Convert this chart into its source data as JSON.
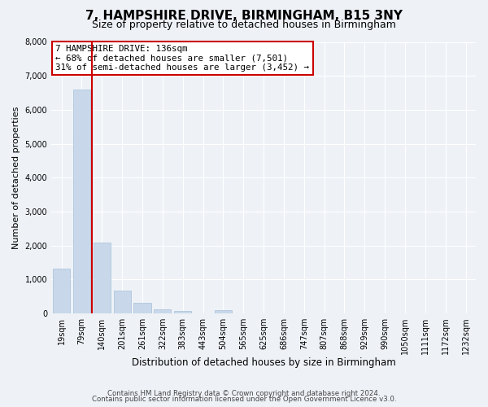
{
  "title": "7, HAMPSHIRE DRIVE, BIRMINGHAM, B15 3NY",
  "subtitle": "Size of property relative to detached houses in Birmingham",
  "xlabel": "Distribution of detached houses by size in Birmingham",
  "ylabel": "Number of detached properties",
  "bar_labels": [
    "19sqm",
    "79sqm",
    "140sqm",
    "201sqm",
    "261sqm",
    "322sqm",
    "383sqm",
    "443sqm",
    "504sqm",
    "565sqm",
    "625sqm",
    "686sqm",
    "747sqm",
    "807sqm",
    "868sqm",
    "929sqm",
    "990sqm",
    "1050sqm",
    "1111sqm",
    "1172sqm",
    "1232sqm"
  ],
  "bar_values": [
    1320,
    6600,
    2080,
    660,
    300,
    130,
    75,
    0,
    95,
    0,
    0,
    0,
    0,
    0,
    0,
    0,
    0,
    0,
    0,
    0,
    0
  ],
  "bar_color": "#c8d8ea",
  "bar_edge_color": "#a8c0d8",
  "vline_color": "#cc0000",
  "vline_x": 1.5,
  "ylim": [
    0,
    8000
  ],
  "yticks": [
    0,
    1000,
    2000,
    3000,
    4000,
    5000,
    6000,
    7000,
    8000
  ],
  "annotation_title": "7 HAMPSHIRE DRIVE: 136sqm",
  "annotation_line1": "← 68% of detached houses are smaller (7,501)",
  "annotation_line2": "31% of semi-detached houses are larger (3,452) →",
  "annotation_box_color": "#ffffff",
  "annotation_box_edge": "#cc0000",
  "footer1": "Contains HM Land Registry data © Crown copyright and database right 2024.",
  "footer2": "Contains public sector information licensed under the Open Government Licence v3.0.",
  "bg_color": "#eef2f7",
  "grid_color": "#ffffff",
  "title_fontsize": 11,
  "subtitle_fontsize": 9,
  "axis_label_fontsize": 8.5,
  "tick_fontsize": 7,
  "ylabel_fontsize": 8
}
